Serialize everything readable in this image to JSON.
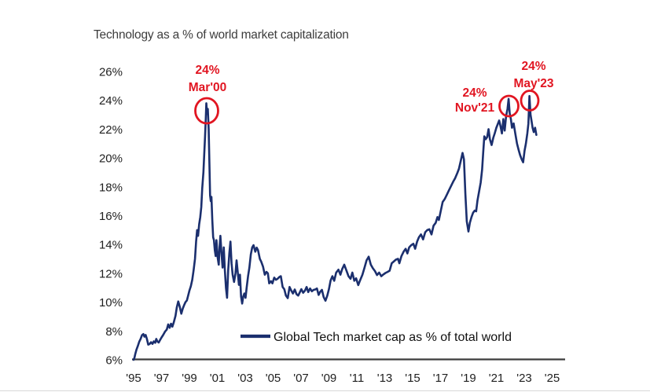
{
  "chart_data": {
    "type": "line",
    "title": "Technology as a % of world market capitalization",
    "x_axis": {
      "ticks": [
        "'95",
        "'97",
        "'99",
        "'01",
        "'03",
        "'05",
        "'07",
        "'09",
        "'11",
        "'13",
        "'15",
        "'17",
        "'19",
        "'21",
        "'23",
        "'25"
      ],
      "tick_years": [
        1995,
        1997,
        1999,
        2001,
        2003,
        2005,
        2007,
        2009,
        2011,
        2013,
        2015,
        2017,
        2019,
        2021,
        2023,
        2025
      ],
      "range": [
        1995,
        2026
      ]
    },
    "y_axis": {
      "ticks": [
        "26%",
        "24%",
        "22%",
        "20%",
        "18%",
        "16%",
        "14%",
        "12%",
        "10%",
        "8%",
        "6%"
      ],
      "tick_values": [
        26,
        24,
        22,
        20,
        18,
        16,
        14,
        12,
        10,
        8,
        6
      ],
      "range": [
        6,
        26
      ],
      "unit": "%"
    },
    "grid": "off",
    "legend": {
      "label": "Global Tech market cap as % of total world",
      "position": "bottom-center-inside"
    },
    "colors": {
      "line": "#1b2f6e",
      "annotation": "#e11521",
      "axis": "#3c3c3c",
      "tick_text": "#1f1f1f",
      "title_text": "#3d3d3d"
    },
    "annotations": [
      {
        "value_label": "24%",
        "date_label": "Mar'00",
        "peak_year": 2000.21,
        "peak_value": 23.8
      },
      {
        "value_label": "24%",
        "date_label": "Nov'21",
        "peak_year": 2021.88,
        "peak_value": 24.1
      },
      {
        "value_label": "24%",
        "date_label": "May'23",
        "peak_year": 2023.37,
        "peak_value": 24.3
      }
    ],
    "series": [
      {
        "name": "Global Tech market cap as % of total world",
        "points": [
          [
            1995.0,
            6.0
          ],
          [
            1995.06,
            6.15
          ],
          [
            1995.12,
            6.4
          ],
          [
            1995.2,
            6.7
          ],
          [
            1995.3,
            6.95
          ],
          [
            1995.4,
            7.25
          ],
          [
            1995.5,
            7.45
          ],
          [
            1995.6,
            7.7
          ],
          [
            1995.7,
            7.78
          ],
          [
            1995.78,
            7.6
          ],
          [
            1995.86,
            7.72
          ],
          [
            1995.95,
            7.45
          ],
          [
            1996.05,
            7.05
          ],
          [
            1996.15,
            7.1
          ],
          [
            1996.25,
            7.22
          ],
          [
            1996.35,
            7.1
          ],
          [
            1996.45,
            7.28
          ],
          [
            1996.55,
            7.18
          ],
          [
            1996.62,
            7.45
          ],
          [
            1996.7,
            7.28
          ],
          [
            1996.8,
            7.2
          ],
          [
            1996.9,
            7.38
          ],
          [
            1997.0,
            7.55
          ],
          [
            1997.12,
            7.72
          ],
          [
            1997.25,
            7.95
          ],
          [
            1997.38,
            8.1
          ],
          [
            1997.48,
            8.45
          ],
          [
            1997.58,
            8.22
          ],
          [
            1997.68,
            8.5
          ],
          [
            1997.78,
            8.3
          ],
          [
            1997.88,
            8.6
          ],
          [
            1998.0,
            9.05
          ],
          [
            1998.1,
            9.65
          ],
          [
            1998.2,
            10.05
          ],
          [
            1998.3,
            9.7
          ],
          [
            1998.42,
            9.2
          ],
          [
            1998.52,
            9.55
          ],
          [
            1998.62,
            9.8
          ],
          [
            1998.72,
            10.0
          ],
          [
            1998.82,
            10.12
          ],
          [
            1998.92,
            10.5
          ],
          [
            1999.0,
            10.8
          ],
          [
            1999.1,
            11.1
          ],
          [
            1999.2,
            11.55
          ],
          [
            1999.3,
            12.2
          ],
          [
            1999.4,
            13.0
          ],
          [
            1999.48,
            14.2
          ],
          [
            1999.55,
            15.0
          ],
          [
            1999.62,
            14.6
          ],
          [
            1999.7,
            15.4
          ],
          [
            1999.78,
            15.9
          ],
          [
            1999.85,
            16.6
          ],
          [
            1999.92,
            17.9
          ],
          [
            2000.0,
            19.0
          ],
          [
            2000.06,
            20.2
          ],
          [
            2000.12,
            21.5
          ],
          [
            2000.17,
            22.7
          ],
          [
            2000.21,
            23.8
          ],
          [
            2000.27,
            23.05
          ],
          [
            2000.32,
            23.4
          ],
          [
            2000.38,
            22.0
          ],
          [
            2000.43,
            19.7
          ],
          [
            2000.48,
            17.4
          ],
          [
            2000.53,
            17.0
          ],
          [
            2000.58,
            17.3
          ],
          [
            2000.64,
            15.7
          ],
          [
            2000.7,
            14.5
          ],
          [
            2000.76,
            14.3
          ],
          [
            2000.82,
            13.6
          ],
          [
            2000.88,
            13.2
          ],
          [
            2000.94,
            14.3
          ],
          [
            2001.02,
            13.1
          ],
          [
            2001.1,
            12.6
          ],
          [
            2001.16,
            13.8
          ],
          [
            2001.22,
            14.6
          ],
          [
            2001.3,
            13.4
          ],
          [
            2001.38,
            12.4
          ],
          [
            2001.46,
            13.8
          ],
          [
            2001.54,
            12.2
          ],
          [
            2001.62,
            11.0
          ],
          [
            2001.7,
            10.3
          ],
          [
            2001.78,
            12.2
          ],
          [
            2001.86,
            13.4
          ],
          [
            2001.94,
            14.2
          ],
          [
            2002.02,
            12.7
          ],
          [
            2002.1,
            11.9
          ],
          [
            2002.2,
            11.4
          ],
          [
            2002.3,
            12.0
          ],
          [
            2002.38,
            12.9
          ],
          [
            2002.48,
            11.9
          ],
          [
            2002.55,
            11.2
          ],
          [
            2002.62,
            11.9
          ],
          [
            2002.7,
            10.4
          ],
          [
            2002.78,
            9.9
          ],
          [
            2002.86,
            10.4
          ],
          [
            2002.94,
            10.6
          ],
          [
            2003.02,
            10.3
          ],
          [
            2003.1,
            11.0
          ],
          [
            2003.2,
            11.8
          ],
          [
            2003.3,
            12.4
          ],
          [
            2003.4,
            13.3
          ],
          [
            2003.5,
            13.8
          ],
          [
            2003.6,
            13.95
          ],
          [
            2003.72,
            13.5
          ],
          [
            2003.82,
            13.78
          ],
          [
            2003.92,
            13.6
          ],
          [
            2004.05,
            13.0
          ],
          [
            2004.15,
            12.8
          ],
          [
            2004.28,
            12.45
          ],
          [
            2004.4,
            11.9
          ],
          [
            2004.52,
            12.1
          ],
          [
            2004.62,
            12.0
          ],
          [
            2004.72,
            11.3
          ],
          [
            2004.85,
            11.45
          ],
          [
            2004.95,
            11.3
          ],
          [
            2005.08,
            11.7
          ],
          [
            2005.2,
            11.55
          ],
          [
            2005.32,
            11.62
          ],
          [
            2005.45,
            11.75
          ],
          [
            2005.55,
            11.8
          ],
          [
            2005.68,
            11.05
          ],
          [
            2005.8,
            10.9
          ],
          [
            2005.92,
            10.45
          ],
          [
            2006.05,
            10.28
          ],
          [
            2006.18,
            11.05
          ],
          [
            2006.3,
            10.8
          ],
          [
            2006.42,
            10.6
          ],
          [
            2006.55,
            10.88
          ],
          [
            2006.68,
            10.55
          ],
          [
            2006.8,
            10.45
          ],
          [
            2006.92,
            10.7
          ],
          [
            2007.02,
            10.9
          ],
          [
            2007.15,
            10.65
          ],
          [
            2007.28,
            10.8
          ],
          [
            2007.4,
            11.05
          ],
          [
            2007.52,
            10.7
          ],
          [
            2007.65,
            10.95
          ],
          [
            2007.78,
            10.75
          ],
          [
            2007.9,
            10.85
          ],
          [
            2008.02,
            10.88
          ],
          [
            2008.14,
            10.95
          ],
          [
            2008.26,
            10.5
          ],
          [
            2008.38,
            10.72
          ],
          [
            2008.5,
            10.85
          ],
          [
            2008.62,
            10.35
          ],
          [
            2008.75,
            10.1
          ],
          [
            2008.88,
            10.45
          ],
          [
            2009.0,
            10.9
          ],
          [
            2009.12,
            11.5
          ],
          [
            2009.25,
            11.8
          ],
          [
            2009.38,
            11.48
          ],
          [
            2009.52,
            12.05
          ],
          [
            2009.68,
            12.25
          ],
          [
            2009.82,
            11.9
          ],
          [
            2009.95,
            12.3
          ],
          [
            2010.1,
            12.6
          ],
          [
            2010.25,
            12.2
          ],
          [
            2010.4,
            11.8
          ],
          [
            2010.55,
            11.62
          ],
          [
            2010.68,
            12.05
          ],
          [
            2010.82,
            11.48
          ],
          [
            2010.95,
            11.65
          ],
          [
            2011.1,
            11.18
          ],
          [
            2011.25,
            11.55
          ],
          [
            2011.4,
            11.9
          ],
          [
            2011.55,
            12.4
          ],
          [
            2011.7,
            12.9
          ],
          [
            2011.85,
            13.15
          ],
          [
            2012.0,
            12.6
          ],
          [
            2012.15,
            12.35
          ],
          [
            2012.3,
            12.15
          ],
          [
            2012.45,
            11.88
          ],
          [
            2012.6,
            12.05
          ],
          [
            2012.75,
            11.8
          ],
          [
            2012.9,
            11.92
          ],
          [
            2013.05,
            12.02
          ],
          [
            2013.2,
            12.1
          ],
          [
            2013.35,
            12.18
          ],
          [
            2013.5,
            12.7
          ],
          [
            2013.65,
            12.82
          ],
          [
            2013.8,
            12.95
          ],
          [
            2013.95,
            13.0
          ],
          [
            2014.05,
            12.7
          ],
          [
            2014.2,
            13.2
          ],
          [
            2014.35,
            13.5
          ],
          [
            2014.5,
            13.7
          ],
          [
            2014.62,
            13.38
          ],
          [
            2014.75,
            13.8
          ],
          [
            2014.9,
            13.95
          ],
          [
            2015.05,
            14.05
          ],
          [
            2015.18,
            13.7
          ],
          [
            2015.32,
            14.2
          ],
          [
            2015.45,
            14.5
          ],
          [
            2015.6,
            14.7
          ],
          [
            2015.75,
            14.35
          ],
          [
            2015.9,
            14.85
          ],
          [
            2016.05,
            15.0
          ],
          [
            2016.2,
            15.05
          ],
          [
            2016.35,
            14.7
          ],
          [
            2016.5,
            15.3
          ],
          [
            2016.65,
            15.5
          ],
          [
            2016.78,
            15.9
          ],
          [
            2016.88,
            15.7
          ],
          [
            2017.0,
            16.25
          ],
          [
            2017.15,
            16.95
          ],
          [
            2017.3,
            17.15
          ],
          [
            2017.45,
            17.45
          ],
          [
            2017.6,
            17.75
          ],
          [
            2017.75,
            18.05
          ],
          [
            2017.9,
            18.35
          ],
          [
            2018.05,
            18.6
          ],
          [
            2018.2,
            18.95
          ],
          [
            2018.32,
            19.25
          ],
          [
            2018.45,
            19.8
          ],
          [
            2018.58,
            20.35
          ],
          [
            2018.68,
            19.9
          ],
          [
            2018.78,
            17.5
          ],
          [
            2018.88,
            15.6
          ],
          [
            2019.0,
            14.9
          ],
          [
            2019.1,
            15.5
          ],
          [
            2019.22,
            15.9
          ],
          [
            2019.33,
            16.2
          ],
          [
            2019.45,
            16.35
          ],
          [
            2019.55,
            16.3
          ],
          [
            2019.65,
            17.05
          ],
          [
            2019.78,
            17.75
          ],
          [
            2019.88,
            18.3
          ],
          [
            2019.98,
            19.2
          ],
          [
            2020.06,
            20.4
          ],
          [
            2020.14,
            21.5
          ],
          [
            2020.24,
            21.3
          ],
          [
            2020.34,
            21.45
          ],
          [
            2020.44,
            22.0
          ],
          [
            2020.54,
            21.3
          ],
          [
            2020.66,
            20.9
          ],
          [
            2020.78,
            21.4
          ],
          [
            2020.88,
            21.7
          ],
          [
            2021.0,
            22.1
          ],
          [
            2021.1,
            22.35
          ],
          [
            2021.2,
            22.6
          ],
          [
            2021.3,
            22.2
          ],
          [
            2021.4,
            21.7
          ],
          [
            2021.5,
            22.7
          ],
          [
            2021.6,
            21.9
          ],
          [
            2021.7,
            22.9
          ],
          [
            2021.8,
            23.4
          ],
          [
            2021.88,
            24.1
          ],
          [
            2021.96,
            23.1
          ],
          [
            2022.04,
            22.7
          ],
          [
            2022.12,
            22.1
          ],
          [
            2022.24,
            22.4
          ],
          [
            2022.36,
            21.7
          ],
          [
            2022.48,
            21.0
          ],
          [
            2022.6,
            20.55
          ],
          [
            2022.7,
            20.2
          ],
          [
            2022.82,
            19.9
          ],
          [
            2022.92,
            19.7
          ],
          [
            2023.02,
            20.5
          ],
          [
            2023.12,
            21.0
          ],
          [
            2023.22,
            21.7
          ],
          [
            2023.3,
            22.4
          ],
          [
            2023.37,
            24.3
          ],
          [
            2023.45,
            23.0
          ],
          [
            2023.52,
            22.6
          ],
          [
            2023.6,
            22.1
          ],
          [
            2023.68,
            21.8
          ],
          [
            2023.78,
            22.1
          ],
          [
            2023.87,
            21.6
          ]
        ]
      }
    ]
  }
}
